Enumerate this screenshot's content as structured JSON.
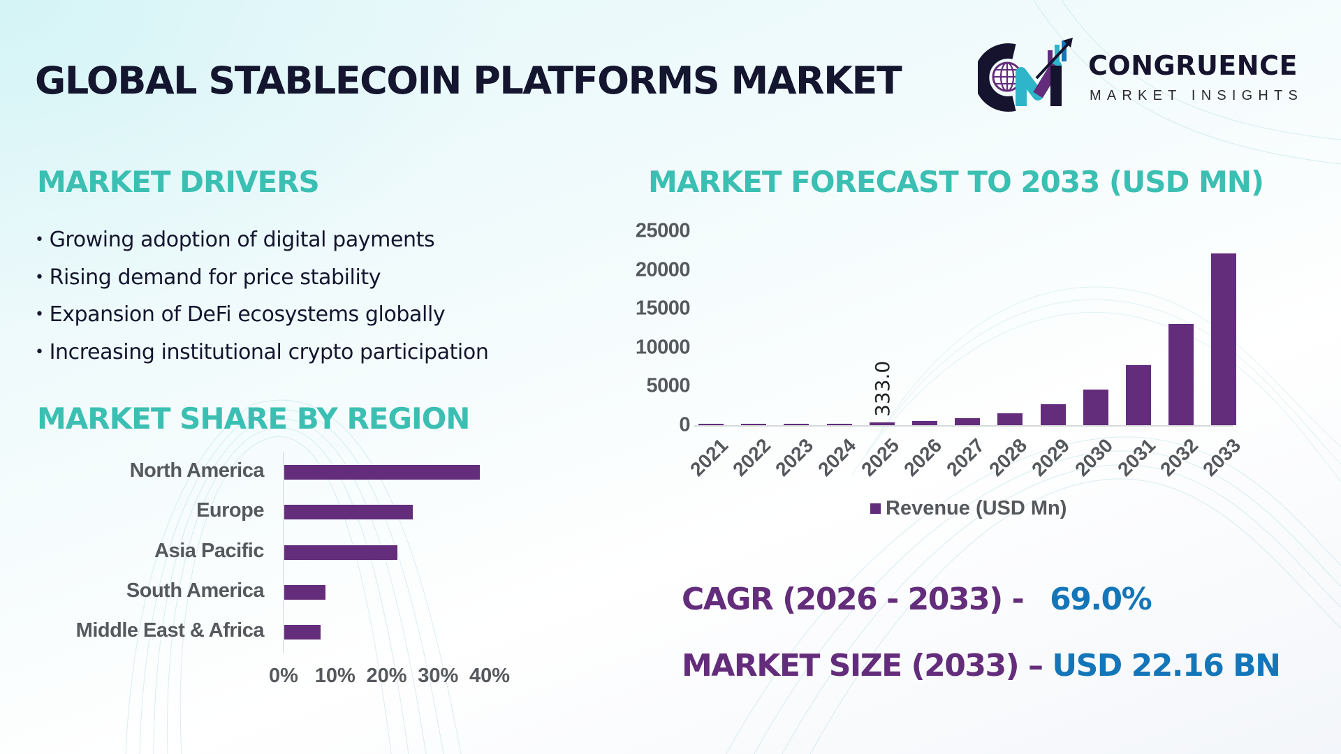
{
  "title": "GLOBAL STABLECOIN PLATFORMS MARKET",
  "logo": {
    "brand": "CONGRUENCE",
    "subtitle": "MARKET INSIGHTS",
    "icon": "cm-globe-chart-logo-icon"
  },
  "drivers": {
    "heading": "MARKET DRIVERS",
    "items": [
      "Growing adoption of digital payments",
      "Rising demand for price stability",
      "Expansion of DeFi ecosystems globally",
      "Increasing institutional crypto participation"
    ]
  },
  "region": {
    "heading": "MARKET SHARE BY REGION"
  },
  "forecast": {
    "heading": "MARKET FORECAST TO 2033 (USD MN)"
  },
  "kpis": {
    "cagr_label": "CAGR (2026 - 2033) -",
    "cagr_value": "69.0%",
    "size_label": "MARKET SIZE (2033) –",
    "size_value": "USD 22.16 BN"
  },
  "colors": {
    "bar": "#632d7b",
    "heading_teal": "#3bbfb2",
    "kpi_purple": "#632d7b",
    "kpi_blue": "#1476b8",
    "title_dark": "#14152e",
    "axis_text": "#55585c"
  },
  "chart_data": [
    {
      "type": "bar",
      "orientation": "horizontal",
      "title": "MARKET SHARE BY REGION",
      "categories": [
        "North America",
        "Europe",
        "Asia Pacific",
        "South America",
        "Middle East & Africa"
      ],
      "values": [
        38,
        25,
        22,
        8,
        7
      ],
      "unit": "%",
      "xlabel": "",
      "ylabel": "",
      "xlim": [
        0,
        40
      ],
      "xticks": [
        "0%",
        "10%",
        "20%",
        "30%",
        "40%"
      ],
      "grid": false,
      "legend": null
    },
    {
      "type": "bar",
      "orientation": "vertical",
      "title": "MARKET FORECAST TO 2033 (USD MN)",
      "categories": [
        "2021",
        "2022",
        "2023",
        "2024",
        "2025",
        "2026",
        "2027",
        "2028",
        "2029",
        "2030",
        "2031",
        "2032",
        "2033"
      ],
      "series": [
        {
          "name": "Revenue (USD Mn)",
          "values": [
            70,
            90,
            120,
            200,
            333.0,
            545,
            900,
            1530,
            2700,
            4610,
            7730,
            13040,
            22160
          ]
        }
      ],
      "data_labels": [
        {
          "category": "2025",
          "text": "333.0"
        }
      ],
      "xlabel": "",
      "ylabel": "",
      "ylim": [
        0,
        25000
      ],
      "yticks": [
        "0",
        "5000",
        "10000",
        "15000",
        "20000",
        "25000"
      ],
      "grid": false,
      "legend": {
        "position": "bottom",
        "entries": [
          "Revenue (USD Mn)"
        ]
      }
    }
  ]
}
